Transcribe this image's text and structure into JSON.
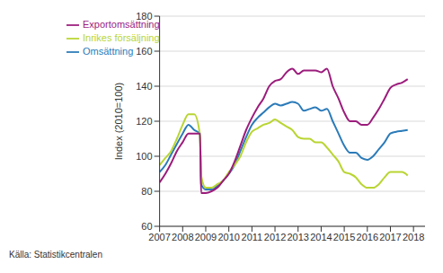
{
  "chart_data": {
    "type": "line",
    "y_label": "Index (2010=100)",
    "source": "Källa: Statistikcentralen",
    "x": [
      2007.0,
      2007.25,
      2007.5,
      2007.75,
      2008.0,
      2008.25,
      2008.5,
      2008.75,
      2008.8,
      2009.0,
      2009.25,
      2009.5,
      2009.75,
      2010.0,
      2010.25,
      2010.5,
      2010.75,
      2011.0,
      2011.25,
      2011.5,
      2011.75,
      2012.0,
      2012.25,
      2012.5,
      2012.75,
      2013.0,
      2013.25,
      2013.5,
      2013.75,
      2014.0,
      2014.25,
      2014.5,
      2014.75,
      2015.0,
      2015.25,
      2015.5,
      2015.75,
      2016.0,
      2016.25,
      2016.5,
      2016.75,
      2017.0,
      2017.25,
      2017.5,
      2017.75
    ],
    "series": [
      {
        "name": "Omsättning",
        "color": "#2b7bb9",
        "values": [
          91,
          95,
          101,
          107,
          113,
          118,
          115,
          113,
          84,
          81,
          81,
          83,
          86,
          90,
          95,
          103,
          111,
          118,
          122,
          125,
          128,
          130,
          129,
          130,
          131,
          130,
          126,
          127,
          128,
          126,
          127,
          120,
          113,
          106,
          102,
          102,
          99,
          98,
          100,
          104,
          108,
          113,
          114,
          114.5,
          115
        ]
      },
      {
        "name": "Inrikes försäljning",
        "color": "#b9d532",
        "values": [
          95,
          99,
          103,
          110,
          118,
          124,
          124,
          112,
          89,
          82,
          82,
          84,
          86,
          91,
          95,
          100,
          108,
          114,
          116,
          118,
          119,
          121,
          119,
          117,
          115,
          111,
          110,
          110,
          108,
          108,
          105,
          101,
          97,
          91,
          90,
          88,
          84,
          82,
          82,
          84,
          88,
          91,
          91,
          91,
          89
        ]
      },
      {
        "name": "Exportomsättning",
        "color": "#9c1c7c",
        "values": [
          85,
          90,
          96,
          103,
          108,
          113,
          113,
          113,
          79,
          79,
          80,
          82,
          86,
          90,
          97,
          106,
          115,
          122,
          128,
          133,
          140,
          143,
          144,
          148,
          150,
          147,
          149,
          149,
          149,
          148,
          150,
          140,
          133,
          125,
          120,
          120,
          118,
          118,
          122,
          127,
          133,
          139,
          141,
          142,
          144
        ]
      }
    ],
    "xlim": [
      2007,
      2018.5
    ],
    "xticks": [
      2007,
      2008,
      2009,
      2010,
      2011,
      2012,
      2013,
      2014,
      2015,
      2016,
      2017,
      2018
    ],
    "ylim": [
      60,
      180
    ],
    "yticks": [
      60,
      80,
      100,
      120,
      140,
      160,
      180
    ],
    "grid": true,
    "legend": "upper left"
  }
}
